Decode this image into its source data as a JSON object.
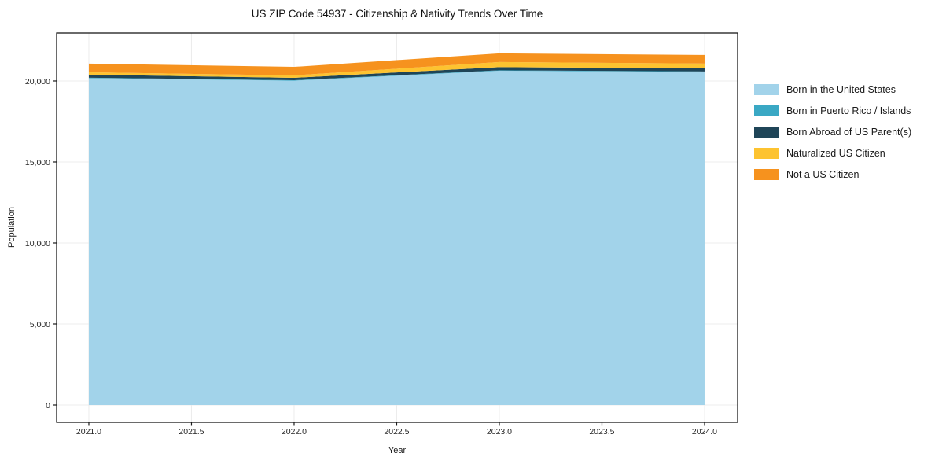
{
  "chart_data": {
    "type": "area",
    "stacked": true,
    "title": "US ZIP Code 54937 - Citizenship & Nativity Trends Over Time",
    "xlabel": "Year",
    "ylabel": "Population",
    "x": [
      2021,
      2022,
      2023,
      2024
    ],
    "series": [
      {
        "name": "Born in the United States",
        "color": "#a2d3ea",
        "values": [
          20170,
          20020,
          20630,
          20560
        ]
      },
      {
        "name": "Born in Puerto Rico / Islands",
        "color": "#3aa8c4",
        "values": [
          30,
          30,
          30,
          30
        ]
      },
      {
        "name": "Born Abroad of US Parent(s)",
        "color": "#1f4558",
        "values": [
          190,
          145,
          195,
          195
        ]
      },
      {
        "name": "Naturalized US Citizen",
        "color": "#fdc330",
        "values": [
          145,
          150,
          315,
          290
        ]
      },
      {
        "name": "Not a US Citizen",
        "color": "#f6921e",
        "values": [
          535,
          525,
          535,
          530
        ]
      }
    ],
    "xticks": [
      2021.0,
      2021.5,
      2022.0,
      2022.5,
      2023.0,
      2023.5,
      2024.0
    ],
    "xtick_labels": [
      "2021.0",
      "2021.5",
      "2022.0",
      "2022.5",
      "2023.0",
      "2023.5",
      "2024.0"
    ],
    "yticks": [
      0,
      5000,
      10000,
      15000,
      20000
    ],
    "ytick_labels": [
      "0",
      "5,000",
      "10,000",
      "15,000",
      "20,000"
    ],
    "xlim": [
      2020.843,
      2024.161
    ],
    "ylim": [
      -1068,
      22960
    ],
    "grid": true,
    "legend_position": "right",
    "colors": {
      "grid": "#ececec",
      "spine": "#1a1a1a",
      "background": "#ffffff"
    }
  }
}
